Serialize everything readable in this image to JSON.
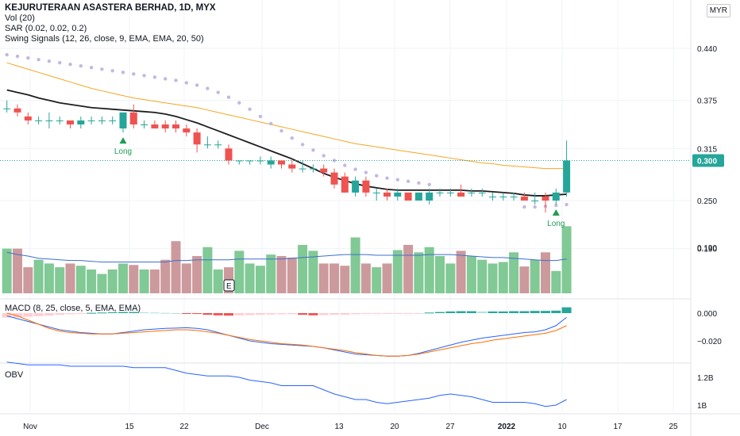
{
  "header": {
    "title": "KEJURUTERAAN ASASTERA BERHAD, 1D, MYX",
    "currency": "MYR",
    "indicators": [
      "Vol (20)",
      "SAR (0.02, 0.02, 0.2)",
      "Swing Signals (12, 26, close, 9, EMA, EMA, 20, 50)"
    ],
    "macd_label": "MACD (8, 25, close, 5, EMA, EMA)",
    "obv_label": "OBV"
  },
  "colors": {
    "up": "#26a69a",
    "down": "#ef5350",
    "vol_up": "#81c995",
    "vol_down": "#cc9a9c",
    "ema_slow": "#f5a623",
    "ema_fast": "#1e1e1e",
    "sar": "#c3b8e0",
    "vol_ma": "#3c6fd1",
    "price_line": "#26a69a"
  },
  "chart_data": [
    {
      "type": "candlestick",
      "title": "KEJURUTERAAN ASASTERA BERHAD, 1D, MYX",
      "x_ticks": [
        "Nov",
        "15",
        "22",
        "Dec",
        "13",
        "20",
        "27",
        "2022",
        "10",
        "17",
        "25"
      ],
      "y_ticks": [
        0.44,
        0.375,
        0.315,
        0.25,
        0.19
      ],
      "last_price": "0.300",
      "candles": [
        [
          0.365,
          0.375,
          0.36,
          0.365
        ],
        [
          0.365,
          0.37,
          0.355,
          0.36
        ],
        [
          0.355,
          0.36,
          0.345,
          0.35
        ],
        [
          0.35,
          0.355,
          0.345,
          0.35
        ],
        [
          0.35,
          0.36,
          0.34,
          0.35
        ],
        [
          0.35,
          0.355,
          0.345,
          0.35
        ],
        [
          0.35,
          0.35,
          0.34,
          0.345
        ],
        [
          0.345,
          0.355,
          0.34,
          0.35
        ],
        [
          0.35,
          0.355,
          0.345,
          0.35
        ],
        [
          0.35,
          0.355,
          0.345,
          0.35
        ],
        [
          0.35,
          0.355,
          0.345,
          0.35
        ],
        [
          0.34,
          0.36,
          0.335,
          0.36
        ],
        [
          0.36,
          0.37,
          0.34,
          0.345
        ],
        [
          0.345,
          0.35,
          0.34,
          0.345
        ],
        [
          0.345,
          0.35,
          0.34,
          0.34
        ],
        [
          0.345,
          0.35,
          0.335,
          0.34
        ],
        [
          0.345,
          0.35,
          0.335,
          0.34
        ],
        [
          0.34,
          0.345,
          0.33,
          0.335
        ],
        [
          0.335,
          0.34,
          0.31,
          0.32
        ],
        [
          0.32,
          0.33,
          0.315,
          0.32
        ],
        [
          0.32,
          0.325,
          0.315,
          0.32
        ],
        [
          0.315,
          0.32,
          0.295,
          0.3
        ],
        [
          0.3,
          0.3,
          0.295,
          0.3
        ],
        [
          0.3,
          0.3,
          0.295,
          0.3
        ],
        [
          0.3,
          0.305,
          0.295,
          0.3
        ],
        [
          0.295,
          0.305,
          0.29,
          0.3
        ],
        [
          0.3,
          0.3,
          0.29,
          0.295
        ],
        [
          0.295,
          0.3,
          0.285,
          0.29
        ],
        [
          0.29,
          0.3,
          0.285,
          0.29
        ],
        [
          0.29,
          0.295,
          0.285,
          0.29
        ],
        [
          0.29,
          0.295,
          0.28,
          0.285
        ],
        [
          0.285,
          0.29,
          0.265,
          0.27
        ],
        [
          0.28,
          0.285,
          0.26,
          0.26
        ],
        [
          0.26,
          0.28,
          0.255,
          0.275
        ],
        [
          0.275,
          0.28,
          0.255,
          0.26
        ],
        [
          0.26,
          0.265,
          0.25,
          0.26
        ],
        [
          0.26,
          0.265,
          0.25,
          0.255
        ],
        [
          0.255,
          0.265,
          0.25,
          0.26
        ],
        [
          0.26,
          0.26,
          0.25,
          0.25
        ],
        [
          0.25,
          0.26,
          0.25,
          0.26
        ],
        [
          0.25,
          0.265,
          0.245,
          0.26
        ],
        [
          0.26,
          0.265,
          0.255,
          0.26
        ],
        [
          0.26,
          0.265,
          0.255,
          0.26
        ],
        [
          0.26,
          0.27,
          0.255,
          0.255
        ],
        [
          0.26,
          0.265,
          0.255,
          0.26
        ],
        [
          0.26,
          0.265,
          0.255,
          0.26
        ],
        [
          0.255,
          0.26,
          0.25,
          0.255
        ],
        [
          0.255,
          0.26,
          0.25,
          0.255
        ],
        [
          0.255,
          0.26,
          0.25,
          0.255
        ],
        [
          0.255,
          0.26,
          0.25,
          0.25
        ],
        [
          0.25,
          0.26,
          0.245,
          0.25
        ],
        [
          0.255,
          0.26,
          0.235,
          0.25
        ],
        [
          0.25,
          0.265,
          0.245,
          0.26
        ],
        [
          0.26,
          0.325,
          0.255,
          0.3
        ]
      ],
      "ema_slow": [
        0.422,
        0.418,
        0.414,
        0.41,
        0.406,
        0.402,
        0.398,
        0.394,
        0.39,
        0.387,
        0.384,
        0.381,
        0.378,
        0.376,
        0.374,
        0.372,
        0.37,
        0.368,
        0.366,
        0.363,
        0.36,
        0.357,
        0.354,
        0.351,
        0.348,
        0.345,
        0.342,
        0.339,
        0.336,
        0.333,
        0.33,
        0.327,
        0.324,
        0.321,
        0.319,
        0.317,
        0.315,
        0.313,
        0.311,
        0.309,
        0.307,
        0.305,
        0.303,
        0.301,
        0.299,
        0.297,
        0.296,
        0.294,
        0.293,
        0.292,
        0.291,
        0.29,
        0.29,
        0.29
      ],
      "ema_fast": [
        0.388,
        0.385,
        0.382,
        0.378,
        0.375,
        0.372,
        0.37,
        0.368,
        0.366,
        0.365,
        0.364,
        0.363,
        0.362,
        0.361,
        0.36,
        0.358,
        0.355,
        0.351,
        0.347,
        0.342,
        0.337,
        0.332,
        0.327,
        0.322,
        0.317,
        0.312,
        0.307,
        0.302,
        0.296,
        0.29,
        0.284,
        0.279,
        0.275,
        0.271,
        0.268,
        0.266,
        0.264,
        0.263,
        0.263,
        0.263,
        0.263,
        0.263,
        0.263,
        0.263,
        0.262,
        0.262,
        0.261,
        0.26,
        0.259,
        0.257,
        0.256,
        0.256,
        0.257,
        0.258
      ],
      "sar": [
        0.432,
        0.43,
        0.428,
        0.426,
        0.424,
        0.422,
        0.42,
        0.418,
        0.416,
        0.414,
        0.412,
        0.41,
        0.408,
        0.406,
        0.404,
        0.402,
        0.4,
        0.397,
        0.394,
        0.39,
        0.385,
        0.379,
        0.372,
        0.364,
        0.355,
        0.346,
        0.337,
        0.328,
        0.32,
        0.313,
        0.306,
        0.3,
        0.294,
        0.289,
        0.285,
        0.281,
        0.278,
        0.276,
        0.274,
        0.272,
        0.27,
        null,
        null,
        null,
        null,
        null,
        null,
        null,
        null,
        0.242,
        0.242,
        0.243,
        0.244,
        0.245
      ],
      "signals": [
        {
          "index": 11,
          "label": "Long"
        },
        {
          "index": 52,
          "label": "Long"
        }
      ],
      "earnings_marker": "E"
    },
    {
      "type": "bar",
      "title": "Vol (20)",
      "y_tick": 0.19,
      "values": [
        60,
        60,
        35,
        45,
        40,
        35,
        40,
        37,
        32,
        26,
        32,
        40,
        38,
        32,
        32,
        45,
        70,
        40,
        50,
        62,
        32,
        35,
        57,
        40,
        37,
        52,
        50,
        48,
        65,
        57,
        40,
        40,
        37,
        75,
        40,
        35,
        40,
        58,
        65,
        55,
        62,
        50,
        40,
        57,
        50,
        45,
        40,
        42,
        55,
        36,
        45,
        55,
        30,
        90
      ],
      "volume_ma": [
        55,
        52,
        50,
        47,
        46,
        45,
        44,
        44,
        43,
        42,
        42,
        42,
        42,
        42,
        42,
        42,
        44,
        44,
        45,
        45,
        45,
        45,
        46,
        46,
        46,
        46,
        46,
        47,
        48,
        49,
        50,
        51,
        52,
        52,
        52,
        51,
        51,
        51,
        51,
        51,
        52,
        52,
        52,
        51,
        50,
        49,
        48,
        48,
        47,
        46,
        45,
        44,
        44,
        46
      ]
    },
    {
      "type": "line",
      "title": "MACD (8, 25, close, 5, EMA, EMA)",
      "y_ticks": [
        0.0,
        -0.02
      ],
      "macd": [
        -0.002,
        -0.004,
        -0.006,
        -0.008,
        -0.01,
        -0.012,
        -0.013,
        -0.014,
        -0.0145,
        -0.015,
        -0.015,
        -0.014,
        -0.013,
        -0.012,
        -0.0115,
        -0.011,
        -0.0108,
        -0.0105,
        -0.011,
        -0.012,
        -0.014,
        -0.016,
        -0.018,
        -0.02,
        -0.021,
        -0.022,
        -0.0225,
        -0.023,
        -0.0235,
        -0.024,
        -0.025,
        -0.0265,
        -0.028,
        -0.0295,
        -0.03,
        -0.0305,
        -0.031,
        -0.031,
        -0.0305,
        -0.029,
        -0.027,
        -0.025,
        -0.023,
        -0.021,
        -0.0195,
        -0.018,
        -0.017,
        -0.016,
        -0.015,
        -0.014,
        -0.0135,
        -0.012,
        -0.009,
        -0.003
      ],
      "signal": [
        0.0,
        -0.002,
        -0.005,
        -0.008,
        -0.011,
        -0.013,
        -0.014,
        -0.0145,
        -0.015,
        -0.015,
        -0.015,
        -0.0145,
        -0.014,
        -0.0135,
        -0.013,
        -0.0125,
        -0.012,
        -0.012,
        -0.0125,
        -0.0135,
        -0.0145,
        -0.016,
        -0.0175,
        -0.019,
        -0.02,
        -0.021,
        -0.022,
        -0.0225,
        -0.023,
        -0.024,
        -0.025,
        -0.026,
        -0.027,
        -0.0285,
        -0.0295,
        -0.0305,
        -0.031,
        -0.031,
        -0.0305,
        -0.0295,
        -0.028,
        -0.0265,
        -0.025,
        -0.0235,
        -0.022,
        -0.021,
        -0.0195,
        -0.0185,
        -0.0175,
        -0.0165,
        -0.0155,
        -0.0145,
        -0.0125,
        -0.009
      ],
      "histogram": [
        -0.0032,
        -0.003,
        -0.0026,
        -0.0022,
        -0.0018,
        -0.0012,
        -0.0008,
        -0.0004,
        0.0002,
        0.0004,
        0.0006,
        0.0008,
        0.0008,
        0.0006,
        0.0004,
        0.0002,
        0.0,
        -0.0002,
        -0.0006,
        -0.0012,
        -0.0016,
        -0.0018,
        -0.0016,
        -0.0014,
        -0.0012,
        -0.001,
        -0.0008,
        -0.0008,
        -0.0012,
        -0.0016,
        -0.0014,
        -0.0012,
        -0.0012,
        -0.0008,
        -0.0006,
        -0.0004,
        -0.0004,
        -0.0004,
        -0.0004,
        -0.0002,
        0.0004,
        0.0008,
        0.0012,
        0.0014,
        0.0014,
        0.0012,
        0.0012,
        0.0012,
        0.0014,
        0.0014,
        0.0016,
        0.0016,
        0.0018,
        0.0042
      ]
    },
    {
      "type": "line",
      "title": "OBV",
      "y_ticks": [
        "1.2B",
        "1B"
      ],
      "values": [
        1.31,
        1.3,
        1.29,
        1.29,
        1.29,
        1.29,
        1.28,
        1.28,
        1.28,
        1.28,
        1.28,
        1.28,
        1.27,
        1.27,
        1.27,
        1.27,
        1.25,
        1.23,
        1.22,
        1.21,
        1.21,
        1.21,
        1.2,
        1.18,
        1.17,
        1.16,
        1.14,
        1.14,
        1.14,
        1.14,
        1.11,
        1.08,
        1.06,
        1.04,
        1.04,
        1.02,
        1.01,
        1.02,
        1.03,
        1.04,
        1.05,
        1.07,
        1.08,
        1.07,
        1.06,
        1.04,
        1.02,
        1.02,
        1.02,
        1.02,
        1.01,
        0.99,
        1.0,
        1.04
      ]
    }
  ]
}
